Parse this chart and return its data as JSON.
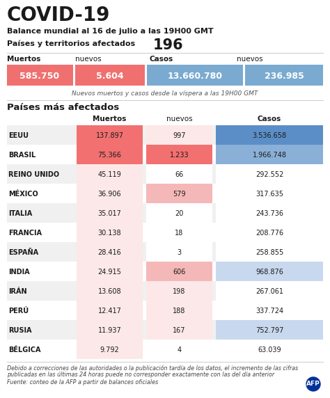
{
  "title": "COVID-19",
  "subtitle": "Balance mundial al 16 de julio a las 19H00 GMT",
  "affected_label": "Países y territorios afectados",
  "affected_count": "196",
  "sum_h1": "Muertos",
  "sum_h2": "nuevos",
  "sum_h3": "Casos",
  "sum_h4": "nuevos",
  "sum_v1": "585.750",
  "sum_v2": "5.604",
  "sum_v3": "13.660.780",
  "sum_v4": "236.985",
  "summary_note": "Nuevos muertos y casos desde la víspera a las 19H00 GMT",
  "table_title": "Países más afectados",
  "col_h1": "Muertos",
  "col_h2": "nuevos",
  "col_h3": "Casos",
  "countries": [
    "EEUU",
    "BRASIL",
    "REINO UNIDO",
    "MÉXICO",
    "ITALIA",
    "FRANCIA",
    "ESPAÑA",
    "INDIA",
    "IRÁN",
    "PERÚ",
    "RUSIA",
    "BÉLGICA"
  ],
  "muertos": [
    "137.897",
    "75.366",
    "45.119",
    "36.906",
    "35.017",
    "30.138",
    "28.416",
    "24.915",
    "13.608",
    "12.417",
    "11.937",
    "9.792"
  ],
  "nuevos": [
    "997",
    "1.233",
    "66",
    "579",
    "20",
    "18",
    "3",
    "606",
    "198",
    "188",
    "167",
    "4"
  ],
  "casos": [
    "3.536.658",
    "1.966.748",
    "292.552",
    "317.635",
    "243.736",
    "208.776",
    "258.855",
    "968.876",
    "267.061",
    "337.724",
    "752.797",
    "63.039"
  ],
  "muertos_bg": [
    "#f27070",
    "#f27070",
    "#fce8e8",
    "#fce8e8",
    "#fce8e8",
    "#fce8e8",
    "#fce8e8",
    "#fce8e8",
    "#fce8e8",
    "#fce8e8",
    "#fce8e8",
    "#fce8e8"
  ],
  "nuevos_bg": [
    "#fce8e8",
    "#f27070",
    "#ffffff",
    "#f5b8b8",
    "#ffffff",
    "#ffffff",
    "#ffffff",
    "#f5b8b8",
    "#fce8e8",
    "#fce8e8",
    "#fce8e8",
    "#ffffff"
  ],
  "casos_bg": [
    "#5b8ec7",
    "#8ab0d8",
    "#ffffff",
    "#ffffff",
    "#ffffff",
    "#ffffff",
    "#ffffff",
    "#c8d8ee",
    "#ffffff",
    "#ffffff",
    "#c8d8ee",
    "#ffffff"
  ],
  "disclaimer_line1": "Debido a correcciones de las autoridades o la publicación tardía de los datos, el incremento de las cifras",
  "disclaimer_line2": "publicadas en las últimas 24 horas puede no corresponder exactamente con las del día anterior",
  "source": "Fuente: conteo de la AFP a partir de balances oficiales",
  "bg_color": "#ffffff",
  "text_color": "#1a1a1a",
  "red_dark": "#f07070",
  "blue_dark": "#7aaad0",
  "afp_blue": "#003399"
}
